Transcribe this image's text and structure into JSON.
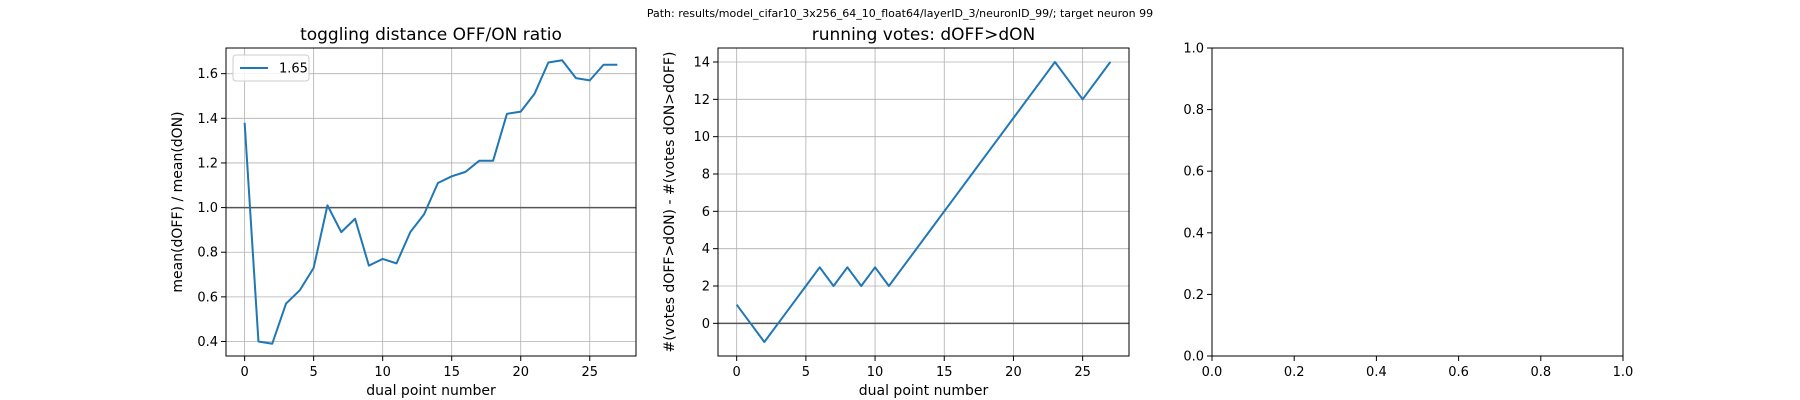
{
  "suptitle": "Path: results/model_cifar10_3x256_64_10_float64/layerID_3/neuronID_99/; target neuron 99",
  "colors": {
    "series": "#1f77b4",
    "grid": "#b0b0b0",
    "refline": "#555555",
    "axes": "#000000"
  },
  "chart_data": [
    {
      "type": "line",
      "title": "toggling distance OFF/ON ratio",
      "xlabel": "dual point number",
      "ylabel": "mean(dOFF) / mean(dON)",
      "xlim": [
        -1.35,
        28.35
      ],
      "ylim": [
        0.335,
        1.715
      ],
      "xticks": [
        0,
        5,
        10,
        15,
        20,
        25
      ],
      "yticks": [
        0.4,
        0.6,
        0.8,
        1.0,
        1.2,
        1.4,
        1.6
      ],
      "ytick_decimals": 1,
      "grid": true,
      "reference_line_y": 1.0,
      "legend": {
        "position": "top-left",
        "entries": [
          "1.65"
        ]
      },
      "series": [
        {
          "name": "1.65",
          "x": [
            0,
            1,
            2,
            3,
            4,
            5,
            6,
            7,
            8,
            9,
            10,
            11,
            12,
            13,
            14,
            15,
            16,
            17,
            18,
            19,
            20,
            21,
            22,
            23,
            24,
            25,
            26,
            27
          ],
          "values": [
            1.38,
            0.4,
            0.39,
            0.57,
            0.63,
            0.73,
            1.01,
            0.89,
            0.95,
            0.74,
            0.77,
            0.75,
            0.89,
            0.97,
            1.11,
            1.14,
            1.16,
            1.21,
            1.21,
            1.42,
            1.43,
            1.51,
            1.65,
            1.66,
            1.58,
            1.57,
            1.64,
            1.64
          ]
        }
      ]
    },
    {
      "type": "line",
      "title": "running votes: dOFF>dON",
      "xlabel": "dual point number",
      "ylabel": "#(votes dOFF>dON) - #(votes dON>dOFF)",
      "xlim": [
        -1.35,
        28.35
      ],
      "ylim": [
        -1.75,
        14.75
      ],
      "xticks": [
        0,
        5,
        10,
        15,
        20,
        25
      ],
      "yticks": [
        0,
        2,
        4,
        6,
        8,
        10,
        12,
        14
      ],
      "ytick_decimals": 0,
      "grid": true,
      "reference_line_y": 0,
      "series": [
        {
          "x": [
            0,
            1,
            2,
            3,
            4,
            5,
            6,
            7,
            8,
            9,
            10,
            11,
            12,
            13,
            14,
            15,
            16,
            17,
            18,
            19,
            20,
            21,
            22,
            23,
            24,
            25,
            26,
            27
          ],
          "values": [
            1,
            0,
            -1,
            0,
            1,
            2,
            3,
            2,
            3,
            2,
            3,
            2,
            3,
            4,
            5,
            6,
            7,
            8,
            9,
            10,
            11,
            12,
            13,
            14,
            13,
            12,
            13,
            14
          ]
        }
      ]
    },
    {
      "type": "line",
      "title": "",
      "xlabel": "",
      "ylabel": "",
      "xlim": [
        0,
        1
      ],
      "ylim": [
        0,
        1
      ],
      "xticks": [
        0,
        0.2,
        0.4,
        0.6,
        0.8,
        1.0
      ],
      "yticks": [
        0,
        0.2,
        0.4,
        0.6,
        0.8,
        1.0
      ],
      "xtick_decimals": 1,
      "ytick_decimals": 1,
      "grid": false,
      "series": []
    }
  ]
}
